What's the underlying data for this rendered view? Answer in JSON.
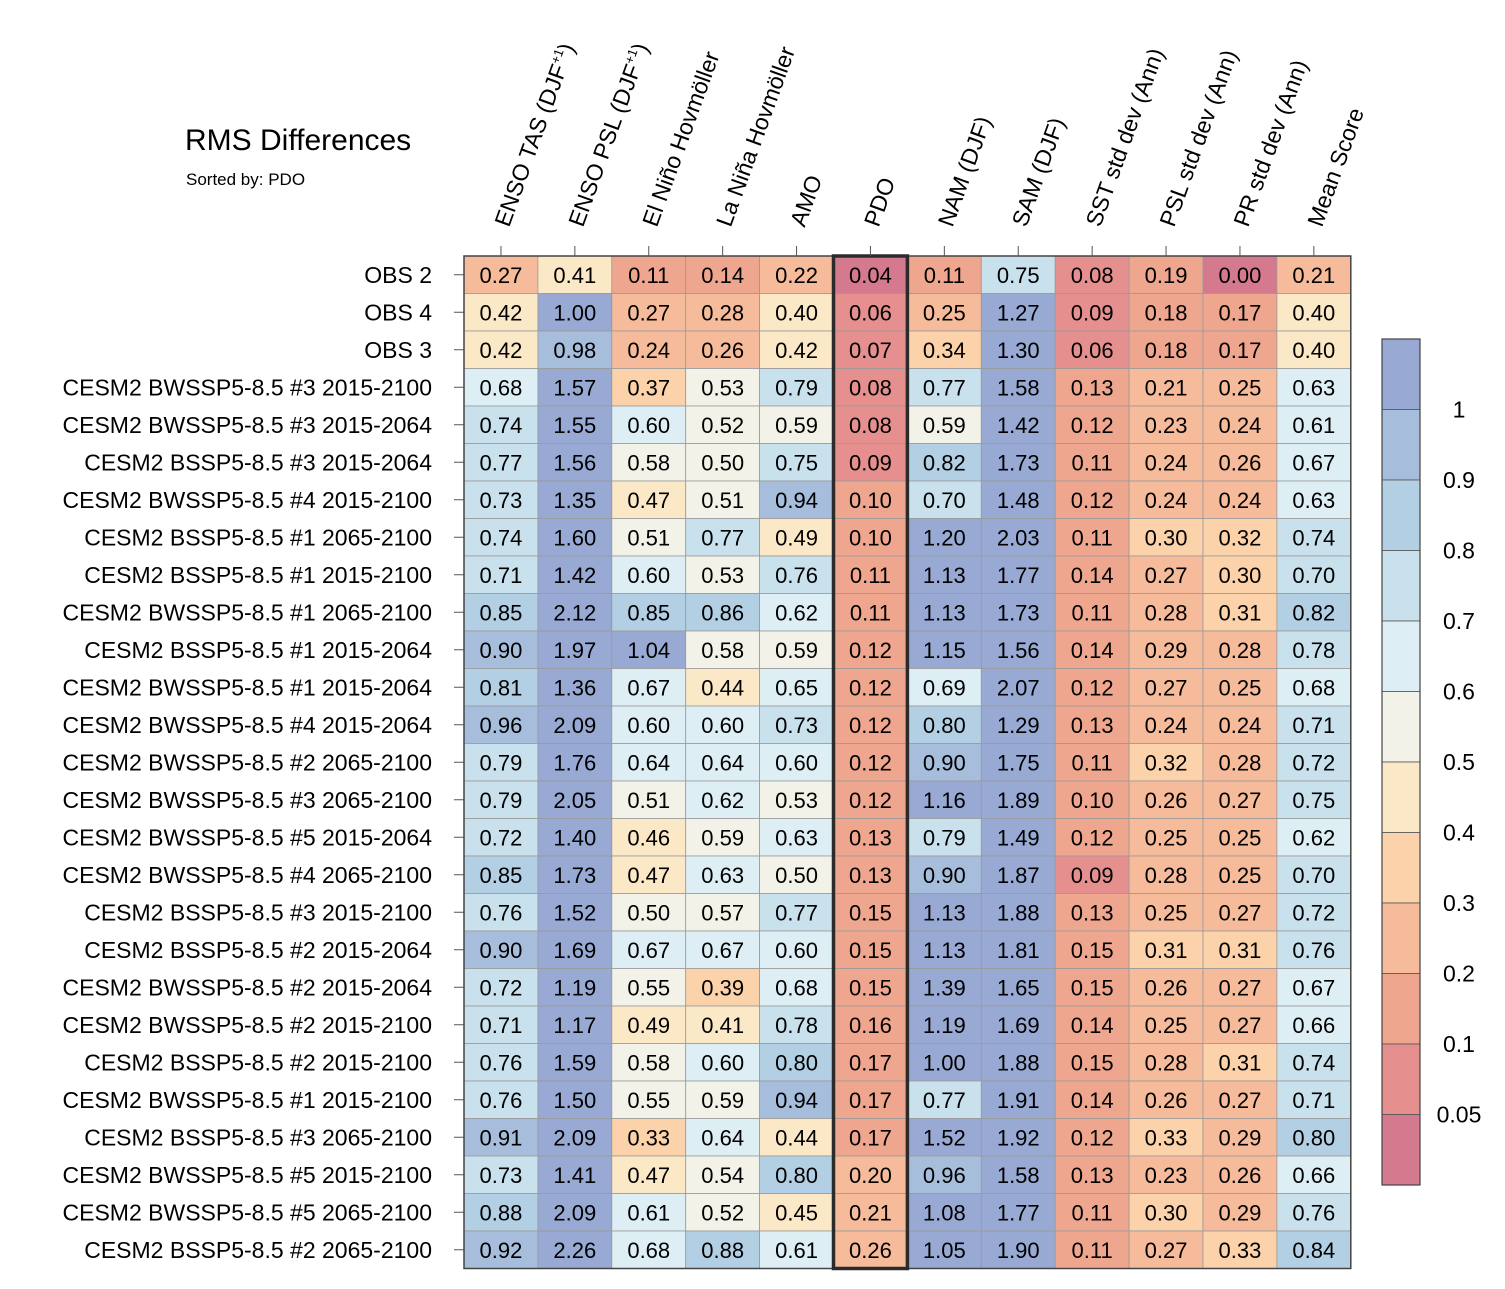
{
  "chart_data": {
    "type": "heatmap",
    "title": "RMS Differences",
    "subtitle": "Sorted by: PDO",
    "highlighted_column": "PDO",
    "columns": [
      {
        "label": "ENSO TAS (DJF",
        "sup": "+1",
        "suffix": ")"
      },
      {
        "label": "ENSO PSL (DJF",
        "sup": "+1",
        "suffix": ")"
      },
      {
        "label": "El Niño Hovmöller",
        "sup": "",
        "suffix": ""
      },
      {
        "label": "La Niña Hovmöller",
        "sup": "",
        "suffix": ""
      },
      {
        "label": "AMO",
        "sup": "",
        "suffix": ""
      },
      {
        "label": "PDO",
        "sup": "",
        "suffix": ""
      },
      {
        "label": "NAM (DJF)",
        "sup": "",
        "suffix": ""
      },
      {
        "label": "SAM (DJF)",
        "sup": "",
        "suffix": ""
      },
      {
        "label": "SST std dev (Ann)",
        "sup": "",
        "suffix": ""
      },
      {
        "label": "PSL std dev (Ann)",
        "sup": "",
        "suffix": ""
      },
      {
        "label": "PR std dev (Ann)",
        "sup": "",
        "suffix": ""
      },
      {
        "label": "Mean Score",
        "sup": "",
        "suffix": ""
      }
    ],
    "rows": [
      {
        "label": "OBS 2",
        "values": [
          "0.27",
          "0.41",
          "0.11",
          "0.14",
          "0.22",
          "0.04",
          "0.11",
          "0.75",
          "0.08",
          "0.19",
          "0.00",
          "0.21"
        ]
      },
      {
        "label": "OBS 4",
        "values": [
          "0.42",
          "1.00",
          "0.27",
          "0.28",
          "0.40",
          "0.06",
          "0.25",
          "1.27",
          "0.09",
          "0.18",
          "0.17",
          "0.40"
        ]
      },
      {
        "label": "OBS 3",
        "values": [
          "0.42",
          "0.98",
          "0.24",
          "0.26",
          "0.42",
          "0.07",
          "0.34",
          "1.30",
          "0.06",
          "0.18",
          "0.17",
          "0.40"
        ]
      },
      {
        "label": "CESM2 BWSSP5-8.5 #3 2015-2100",
        "values": [
          "0.68",
          "1.57",
          "0.37",
          "0.53",
          "0.79",
          "0.08",
          "0.77",
          "1.58",
          "0.13",
          "0.21",
          "0.25",
          "0.63"
        ]
      },
      {
        "label": "CESM2 BWSSP5-8.5 #3 2015-2064",
        "values": [
          "0.74",
          "1.55",
          "0.60",
          "0.52",
          "0.59",
          "0.08",
          "0.59",
          "1.42",
          "0.12",
          "0.23",
          "0.24",
          "0.61"
        ]
      },
      {
        "label": "CESM2 BSSP5-8.5 #3 2015-2064",
        "values": [
          "0.77",
          "1.56",
          "0.58",
          "0.50",
          "0.75",
          "0.09",
          "0.82",
          "1.73",
          "0.11",
          "0.24",
          "0.26",
          "0.67"
        ]
      },
      {
        "label": "CESM2 BWSSP5-8.5 #4 2015-2100",
        "values": [
          "0.73",
          "1.35",
          "0.47",
          "0.51",
          "0.94",
          "0.10",
          "0.70",
          "1.48",
          "0.12",
          "0.24",
          "0.24",
          "0.63"
        ]
      },
      {
        "label": "CESM2 BSSP5-8.5 #1 2065-2100",
        "values": [
          "0.74",
          "1.60",
          "0.51",
          "0.77",
          "0.49",
          "0.10",
          "1.20",
          "2.03",
          "0.11",
          "0.30",
          "0.32",
          "0.74"
        ]
      },
      {
        "label": "CESM2 BSSP5-8.5 #1 2015-2100",
        "values": [
          "0.71",
          "1.42",
          "0.60",
          "0.53",
          "0.76",
          "0.11",
          "1.13",
          "1.77",
          "0.14",
          "0.27",
          "0.30",
          "0.70"
        ]
      },
      {
        "label": "CESM2 BWSSP5-8.5 #1 2065-2100",
        "values": [
          "0.85",
          "2.12",
          "0.85",
          "0.86",
          "0.62",
          "0.11",
          "1.13",
          "1.73",
          "0.11",
          "0.28",
          "0.31",
          "0.82"
        ]
      },
      {
        "label": "CESM2 BSSP5-8.5 #1 2015-2064",
        "values": [
          "0.90",
          "1.97",
          "1.04",
          "0.58",
          "0.59",
          "0.12",
          "1.15",
          "1.56",
          "0.14",
          "0.29",
          "0.28",
          "0.78"
        ]
      },
      {
        "label": "CESM2 BWSSP5-8.5 #1 2015-2064",
        "values": [
          "0.81",
          "1.36",
          "0.67",
          "0.44",
          "0.65",
          "0.12",
          "0.69",
          "2.07",
          "0.12",
          "0.27",
          "0.25",
          "0.68"
        ]
      },
      {
        "label": "CESM2 BWSSP5-8.5 #4 2015-2064",
        "values": [
          "0.96",
          "2.09",
          "0.60",
          "0.60",
          "0.73",
          "0.12",
          "0.80",
          "1.29",
          "0.13",
          "0.24",
          "0.24",
          "0.71"
        ]
      },
      {
        "label": "CESM2 BWSSP5-8.5 #2 2065-2100",
        "values": [
          "0.79",
          "1.76",
          "0.64",
          "0.64",
          "0.60",
          "0.12",
          "0.90",
          "1.75",
          "0.11",
          "0.32",
          "0.28",
          "0.72"
        ]
      },
      {
        "label": "CESM2 BWSSP5-8.5 #3 2065-2100",
        "values": [
          "0.79",
          "2.05",
          "0.51",
          "0.62",
          "0.53",
          "0.12",
          "1.16",
          "1.89",
          "0.10",
          "0.26",
          "0.27",
          "0.75"
        ]
      },
      {
        "label": "CESM2 BWSSP5-8.5 #5 2015-2064",
        "values": [
          "0.72",
          "1.40",
          "0.46",
          "0.59",
          "0.63",
          "0.13",
          "0.79",
          "1.49",
          "0.12",
          "0.25",
          "0.25",
          "0.62"
        ]
      },
      {
        "label": "CESM2 BWSSP5-8.5 #4 2065-2100",
        "values": [
          "0.85",
          "1.73",
          "0.47",
          "0.63",
          "0.50",
          "0.13",
          "0.90",
          "1.87",
          "0.09",
          "0.28",
          "0.25",
          "0.70"
        ]
      },
      {
        "label": "CESM2 BSSP5-8.5 #3 2015-2100",
        "values": [
          "0.76",
          "1.52",
          "0.50",
          "0.57",
          "0.77",
          "0.15",
          "1.13",
          "1.88",
          "0.13",
          "0.25",
          "0.27",
          "0.72"
        ]
      },
      {
        "label": "CESM2 BSSP5-8.5 #2 2015-2064",
        "values": [
          "0.90",
          "1.69",
          "0.67",
          "0.67",
          "0.60",
          "0.15",
          "1.13",
          "1.81",
          "0.15",
          "0.31",
          "0.31",
          "0.76"
        ]
      },
      {
        "label": "CESM2 BWSSP5-8.5 #2 2015-2064",
        "values": [
          "0.72",
          "1.19",
          "0.55",
          "0.39",
          "0.68",
          "0.15",
          "1.39",
          "1.65",
          "0.15",
          "0.26",
          "0.27",
          "0.67"
        ]
      },
      {
        "label": "CESM2 BWSSP5-8.5 #2 2015-2100",
        "values": [
          "0.71",
          "1.17",
          "0.49",
          "0.41",
          "0.78",
          "0.16",
          "1.19",
          "1.69",
          "0.14",
          "0.25",
          "0.27",
          "0.66"
        ]
      },
      {
        "label": "CESM2 BSSP5-8.5 #2 2015-2100",
        "values": [
          "0.76",
          "1.59",
          "0.58",
          "0.60",
          "0.80",
          "0.17",
          "1.00",
          "1.88",
          "0.15",
          "0.28",
          "0.31",
          "0.74"
        ]
      },
      {
        "label": "CESM2 BWSSP5-8.5 #1 2015-2100",
        "values": [
          "0.76",
          "1.50",
          "0.55",
          "0.59",
          "0.94",
          "0.17",
          "0.77",
          "1.91",
          "0.14",
          "0.26",
          "0.27",
          "0.71"
        ]
      },
      {
        "label": "CESM2 BSSP5-8.5 #3 2065-2100",
        "values": [
          "0.91",
          "2.09",
          "0.33",
          "0.64",
          "0.44",
          "0.17",
          "1.52",
          "1.92",
          "0.12",
          "0.33",
          "0.29",
          "0.80"
        ]
      },
      {
        "label": "CESM2 BWSSP5-8.5 #5 2015-2100",
        "values": [
          "0.73",
          "1.41",
          "0.47",
          "0.54",
          "0.80",
          "0.20",
          "0.96",
          "1.58",
          "0.13",
          "0.23",
          "0.26",
          "0.66"
        ]
      },
      {
        "label": "CESM2 BWSSP5-8.5 #5 2065-2100",
        "values": [
          "0.88",
          "2.09",
          "0.61",
          "0.52",
          "0.45",
          "0.21",
          "1.08",
          "1.77",
          "0.11",
          "0.30",
          "0.29",
          "0.76"
        ]
      },
      {
        "label": "CESM2 BSSP5-8.5 #2 2065-2100",
        "values": [
          "0.92",
          "2.26",
          "0.68",
          "0.88",
          "0.61",
          "0.26",
          "1.05",
          "1.90",
          "0.11",
          "0.27",
          "0.33",
          "0.84"
        ]
      }
    ],
    "colorbar": {
      "labels": [
        "1",
        "0.9",
        "0.8",
        "0.7",
        "0.6",
        "0.5",
        "0.4",
        "0.3",
        "0.2",
        "0.1",
        "0.05"
      ],
      "levels": [
        0.05,
        0.1,
        0.2,
        0.3,
        0.4,
        0.5,
        0.6,
        0.7,
        0.8,
        0.9,
        1
      ],
      "colors": [
        "#d57a8e",
        "#e5908e",
        "#efa68f",
        "#f6bb9a",
        "#fbd2a9",
        "#fbe8c6",
        "#f3f2e8",
        "#deeef5",
        "#c8e1ec",
        "#b3cfe4",
        "#a6bddb",
        "#98a9d3"
      ]
    }
  }
}
